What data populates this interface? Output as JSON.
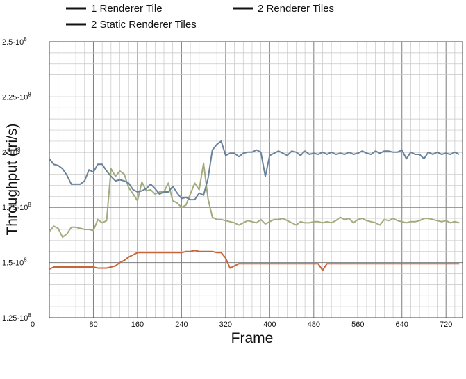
{
  "colors": {
    "series_1": "#6a8299",
    "series_2": "#a2ab7e",
    "series_3": "#c8653a",
    "legend_swatch": "#111111",
    "grid_minor": "#c6c6c6",
    "grid_major": "#7e7e7e"
  },
  "chart_data": {
    "type": "line",
    "xlabel": "Frame",
    "ylabel": "Throughput (tri/s)",
    "xlim": [
      0,
      750
    ],
    "ylim": [
      125000000,
      250000000
    ],
    "x_ticks": [
      "0",
      "80",
      "160",
      "240",
      "320",
      "400",
      "480",
      "560",
      "640",
      "720"
    ],
    "y_ticks": [
      {
        "mantissa": "1.25",
        "exp": "8"
      },
      {
        "mantissa": "1.5",
        "exp": "8"
      },
      {
        "mantissa": "1.75",
        "exp": "8"
      },
      {
        "mantissa": "2",
        "exp": "8"
      },
      {
        "mantissa": "2.25",
        "exp": "8"
      },
      {
        "mantissa": "2.5",
        "exp": "8"
      }
    ],
    "tick_base": "·10",
    "grid": true,
    "legend": {
      "placement": "top",
      "entries": [
        "1 Renderer Tile",
        "2 Renderer Tiles",
        "2 Static Renderer Tiles"
      ]
    },
    "x": [
      0,
      8,
      16,
      24,
      32,
      40,
      48,
      56,
      64,
      72,
      80,
      88,
      96,
      104,
      112,
      120,
      128,
      136,
      144,
      152,
      160,
      168,
      176,
      184,
      192,
      200,
      208,
      216,
      224,
      232,
      240,
      248,
      256,
      264,
      272,
      280,
      288,
      296,
      304,
      312,
      320,
      328,
      336,
      344,
      352,
      360,
      368,
      376,
      384,
      392,
      400,
      408,
      416,
      424,
      432,
      440,
      448,
      456,
      464,
      472,
      480,
      488,
      496,
      504,
      512,
      520,
      528,
      536,
      544,
      552,
      560,
      568,
      576,
      584,
      592,
      600,
      608,
      616,
      624,
      632,
      640,
      648,
      656,
      664,
      672,
      680,
      688,
      696,
      704,
      712,
      720,
      728,
      736,
      744
    ],
    "series": [
      {
        "name": "1 Renderer Tile",
        "values": [
          197.0,
          194.5,
          194.0,
          192.5,
          189.5,
          185.5,
          185.5,
          185.5,
          187.0,
          192.0,
          191.0,
          194.5,
          194.5,
          191.5,
          189.0,
          187.0,
          187.5,
          187.0,
          186.0,
          183.0,
          182.0,
          182.5,
          183.5,
          185.5,
          183.5,
          181.0,
          182.0,
          182.0,
          184.5,
          181.5,
          179.0,
          179.5,
          178.5,
          178.5,
          181.5,
          180.5,
          188.0,
          201.0,
          203.5,
          205.0,
          198.5,
          199.5,
          199.5,
          198.0,
          199.5,
          200.0,
          200.0,
          201.0,
          200.0,
          189.0,
          198.5,
          199.5,
          200.5,
          199.5,
          198.5,
          200.5,
          200.0,
          198.5,
          200.5,
          199.0,
          199.5,
          199.0,
          200.0,
          199.0,
          200.0,
          199.0,
          199.5,
          199.0,
          200.0,
          199.0,
          199.5,
          200.5,
          199.5,
          199.0,
          200.5,
          199.5,
          200.5,
          200.5,
          200.0,
          200.0,
          201.0,
          197.0,
          200.0,
          199.0,
          199.0,
          197.0,
          200.0,
          199.0,
          200.0,
          199.0,
          199.5,
          199.0,
          200.0,
          199.0
        ]
      },
      {
        "name": "2 Renderer Tiles",
        "values": [
          164.0,
          166.5,
          165.5,
          161.5,
          163.0,
          166.0,
          166.0,
          165.5,
          165.0,
          165.0,
          164.5,
          169.5,
          168.0,
          169.0,
          192.5,
          189.0,
          191.5,
          190.0,
          184.0,
          181.0,
          178.0,
          186.5,
          182.5,
          183.0,
          181.0,
          182.0,
          182.0,
          186.0,
          178.0,
          177.0,
          175.0,
          176.0,
          181.0,
          186.0,
          183.0,
          195.0,
          179.0,
          170.5,
          169.5,
          169.5,
          169.0,
          168.5,
          168.0,
          167.0,
          168.0,
          169.0,
          168.5,
          168.0,
          169.5,
          167.5,
          168.5,
          169.5,
          169.5,
          170.0,
          169.0,
          168.0,
          167.0,
          168.5,
          168.0,
          168.0,
          168.5,
          168.5,
          168.0,
          168.5,
          168.0,
          169.0,
          170.5,
          169.5,
          170.0,
          168.0,
          169.5,
          170.0,
          169.0,
          168.5,
          168.0,
          167.0,
          169.5,
          169.0,
          170.0,
          169.0,
          168.5,
          168.0,
          168.5,
          168.5,
          169.0,
          170.0,
          170.0,
          169.5,
          169.0,
          168.5,
          169.0,
          168.0,
          168.5,
          168.0
        ]
      },
      {
        "name": "2 Static Renderer Tiles",
        "values": [
          147.0,
          148.0,
          148.0,
          148.0,
          148.0,
          148.0,
          148.0,
          148.0,
          148.0,
          148.0,
          148.0,
          147.5,
          147.5,
          147.5,
          148.0,
          148.5,
          150.0,
          151.0,
          152.5,
          153.5,
          154.5,
          154.5,
          154.5,
          154.5,
          154.5,
          154.5,
          154.5,
          154.5,
          154.5,
          154.5,
          154.5,
          155.0,
          155.0,
          155.5,
          155.0,
          155.0,
          155.0,
          155.0,
          154.5,
          154.5,
          152.0,
          147.5,
          148.5,
          149.5,
          149.5,
          149.5,
          149.5,
          149.5,
          149.5,
          149.5,
          149.5,
          149.5,
          149.5,
          149.5,
          149.5,
          149.5,
          149.5,
          149.5,
          149.5,
          149.5,
          149.5,
          149.5,
          146.5,
          149.5,
          149.5,
          149.5,
          149.5,
          149.5,
          149.5,
          149.5,
          149.5,
          149.5,
          149.5,
          149.5,
          149.5,
          149.5,
          149.5,
          149.5,
          149.5,
          149.5,
          149.5,
          149.5,
          149.5,
          149.5,
          149.5,
          149.5,
          149.5,
          149.5,
          149.5,
          149.5,
          149.5,
          149.5,
          149.5,
          149.5
        ]
      }
    ]
  }
}
